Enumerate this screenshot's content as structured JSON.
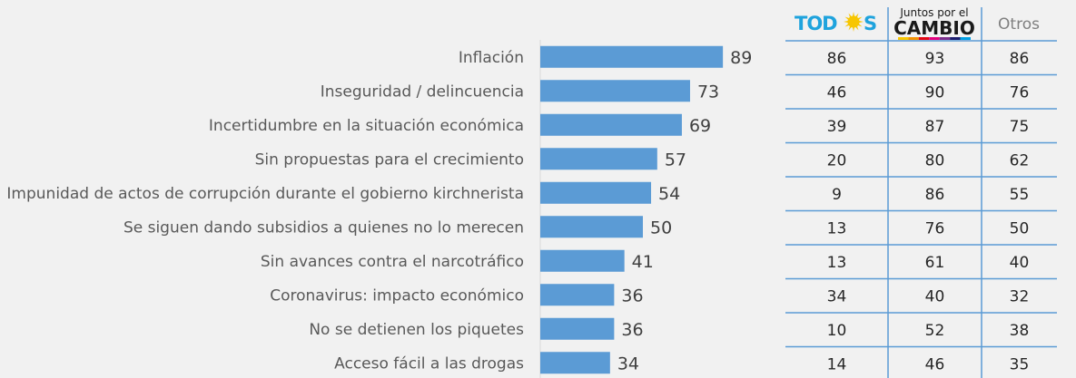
{
  "chart_data": {
    "type": "bar",
    "orientation": "horizontal",
    "categories": [
      "Inflación",
      "Inseguridad / delincuencia",
      "Incertidumbre en la situación económica",
      "Sin propuestas para el crecimiento",
      "Impunidad de actos de corrupción durante el gobierno kirchnerista",
      "Se siguen dando subsidios a quienes no lo merecen",
      "Sin avances contra el narcotráfico",
      "Coronavirus: impacto económico",
      "No se detienen los piquetes",
      "Acceso fácil a las drogas"
    ],
    "values": [
      89,
      73,
      69,
      57,
      54,
      50,
      41,
      36,
      36,
      34
    ],
    "bar_color": "#5b9bd5",
    "xlim": [
      0,
      100
    ],
    "grid": false,
    "table": {
      "columns": [
        {
          "name": "TODOS",
          "logo": "frente-de-todos-logo",
          "values": [
            86,
            46,
            39,
            20,
            9,
            13,
            13,
            34,
            10,
            14
          ]
        },
        {
          "name": "Juntos por el CAMBIO",
          "logo": "juntos-por-el-cambio-logo",
          "values": [
            93,
            90,
            87,
            80,
            86,
            76,
            61,
            40,
            52,
            46
          ]
        },
        {
          "name": "Otros",
          "logo": null,
          "values": [
            86,
            76,
            75,
            62,
            55,
            50,
            40,
            32,
            38,
            35
          ]
        }
      ],
      "line_color": "#5b9bd5"
    }
  },
  "logos": {
    "todos": {
      "left": "TOD",
      "right": "S",
      "color": "#1fa3dd",
      "sun_color": "#f7c600"
    },
    "jxc": {
      "top": "Juntos por el",
      "bottom": "CAMBIO",
      "stripe_colors": [
        "#f7c600",
        "#f39200",
        "#e30613",
        "#e5007d",
        "#7b2d8b",
        "#1d1d6e",
        "#009fe3"
      ]
    },
    "otros": "Otros"
  }
}
